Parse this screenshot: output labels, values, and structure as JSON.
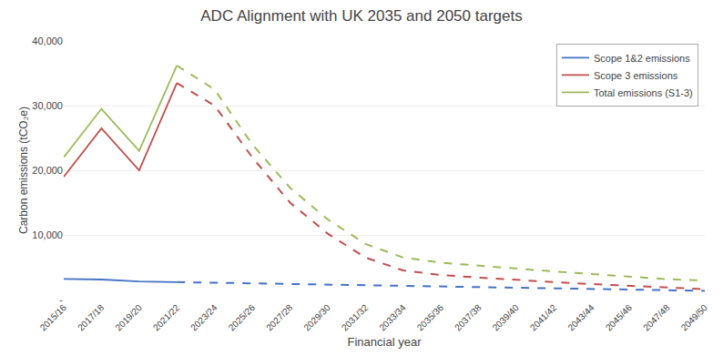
{
  "chart_data": {
    "type": "line",
    "title": "ADC Alignment with UK 2035 and 2050 targets",
    "x_label": "Financial year",
    "y_label": "Carbon emissions (tCO₂e)",
    "categories": [
      "2015/16",
      "2017/18",
      "2019/20",
      "2021/22",
      "2023/24",
      "2025/26",
      "2027/28",
      "2029/30",
      "2031/32",
      "2033/34",
      "2035/36",
      "2037/38",
      "2039/40",
      "2041/42",
      "2043/44",
      "2045/46",
      "2047/48",
      "2049/50"
    ],
    "series": [
      {
        "name": "Scope 1&2 emissions",
        "color": "#4472C4",
        "line_style": "solid",
        "values": [
          3200,
          3100,
          2800,
          2700,
          null,
          null,
          null,
          null,
          null,
          null,
          null,
          null,
          null,
          null,
          null,
          null,
          null,
          null
        ]
      },
      {
        "color": "#4472C4",
        "line_style": "dashed",
        "values": [
          null,
          null,
          null,
          2700,
          2600,
          2500,
          2400,
          2300,
          2200,
          2100,
          2000,
          1900,
          1850,
          1750,
          1650,
          1550,
          1450,
          1350
        ]
      },
      {
        "name": "Scope 3 emissions",
        "color": "#C0504D",
        "line_style": "solid",
        "values": [
          19000,
          26500,
          20000,
          33500,
          null,
          null,
          null,
          null,
          null,
          null,
          null,
          null,
          null,
          null,
          null,
          null,
          null,
          null
        ]
      },
      {
        "color": "#C0504D",
        "line_style": "dashed",
        "values": [
          null,
          null,
          null,
          33500,
          30000,
          22000,
          15000,
          10200,
          6500,
          4500,
          3800,
          3400,
          3000,
          2700,
          2400,
          2100,
          1800,
          1600
        ]
      },
      {
        "name": "Total emissions (S1-3)",
        "color": "#9BBB59",
        "line_style": "solid",
        "values": [
          22000,
          29500,
          23000,
          36200,
          null,
          null,
          null,
          null,
          null,
          null,
          null,
          null,
          null,
          null,
          null,
          null,
          null,
          null
        ]
      },
      {
        "color": "#9BBB59",
        "line_style": "dashed",
        "values": [
          null,
          null,
          null,
          36200,
          32500,
          24000,
          17300,
          12400,
          8600,
          6500,
          5700,
          5250,
          4750,
          4350,
          3950,
          3550,
          3150,
          2950
        ]
      }
    ],
    "ylim": [
      0,
      40000
    ],
    "yticks": [
      {
        "value": 0,
        "label": "-"
      },
      {
        "value": 10000,
        "label": "10,000"
      },
      {
        "value": 20000,
        "label": "20,000"
      },
      {
        "value": 30000,
        "label": "30,000"
      },
      {
        "value": 40000,
        "label": "40,000"
      }
    ],
    "grid": true,
    "legend": "upper right"
  }
}
